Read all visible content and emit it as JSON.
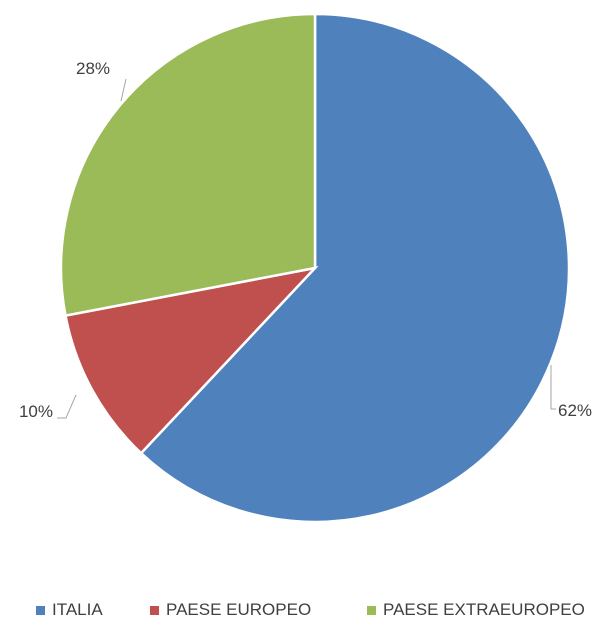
{
  "chart_data": {
    "type": "pie",
    "title": "",
    "categories": [
      "ITALIA",
      "PAESE EUROPEO",
      "PAESE EXTRAEUROPEO"
    ],
    "values": [
      62,
      10,
      28
    ],
    "labels": [
      "62%",
      "10%",
      "28%"
    ],
    "colors": [
      "#4f81bd",
      "#c0504d",
      "#9bbb59"
    ],
    "start_angle_deg": 0,
    "direction": "clockwise",
    "legend_position": "bottom"
  },
  "legend": {
    "items": [
      {
        "label": "ITALIA",
        "color": "#4f81bd"
      },
      {
        "label": "PAESE EUROPEO",
        "color": "#c0504d"
      },
      {
        "label": "PAESE EXTRAEUROPEO",
        "color": "#9bbb59"
      }
    ]
  }
}
